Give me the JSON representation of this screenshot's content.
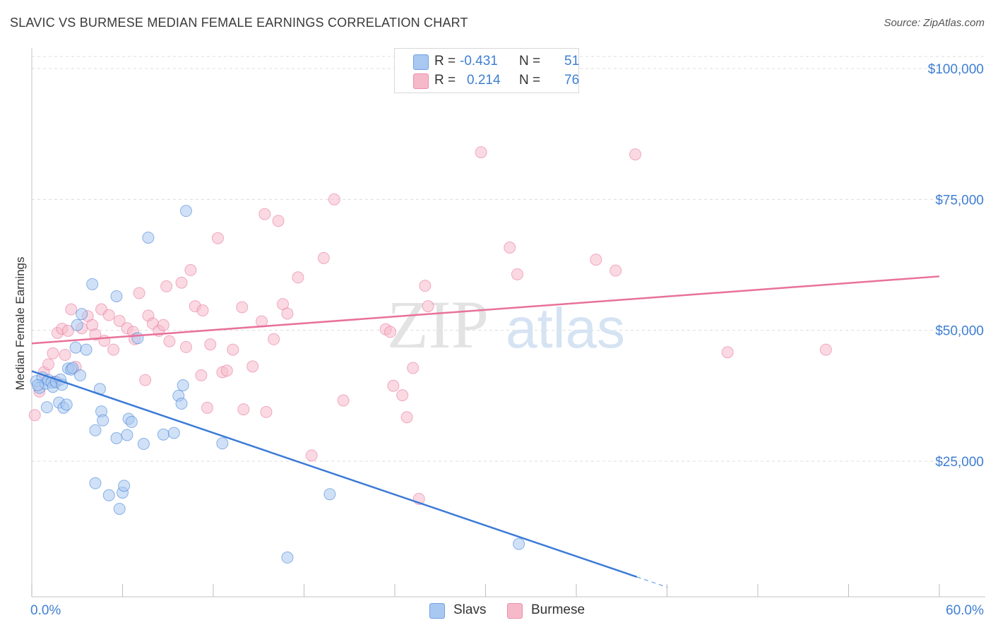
{
  "header": {
    "title": "SLAVIC VS BURMESE MEDIAN FEMALE EARNINGS CORRELATION CHART",
    "source": "Source: ZipAtlas.com"
  },
  "legend": {
    "rows": [
      {
        "r_label": "R =",
        "r_value": "-0.431",
        "n_label": "N =",
        "n_value": "51",
        "color": "#a9c8f1"
      },
      {
        "r_label": "R =",
        "r_value": "0.214",
        "n_label": "N =",
        "n_value": "76",
        "color": "#f6b9ca"
      }
    ]
  },
  "bottom_legend": [
    {
      "label": "Slavs",
      "color": "#a9c8f1"
    },
    {
      "label": "Burmese",
      "color": "#f6b9ca"
    }
  ],
  "watermark": {
    "left": "ZIP",
    "right": "atlas"
  },
  "chart_data": {
    "type": "scatter",
    "title": "SLAVIC VS BURMESE MEDIAN FEMALE EARNINGS CORRELATION CHART",
    "xlabel": "",
    "ylabel": "Median Female Earnings",
    "xlim": [
      0,
      60
    ],
    "ylim": [
      0,
      105000
    ],
    "x_tick_labels": [
      {
        "value": 0,
        "label": "0.0%"
      },
      {
        "value": 60,
        "label": "60.0%"
      }
    ],
    "y_ticks": [
      {
        "value": 25000,
        "label": "$25,000"
      },
      {
        "value": 50000,
        "label": "$50,000"
      },
      {
        "value": 75000,
        "label": "$75,000"
      },
      {
        "value": 100000,
        "label": "$100,000"
      }
    ],
    "grid": true,
    "series": [
      {
        "name": "Slavs",
        "color": "#3b7bd6",
        "fill": "#a9c8f1",
        "trend": {
          "x_start": 0,
          "y_start": 42200,
          "x_end": 40,
          "y_end": 2900,
          "dash_to_x": 42
        },
        "points": [
          [
            0.3,
            40300
          ],
          [
            0.5,
            39000
          ],
          [
            0.7,
            41000
          ],
          [
            0.9,
            39800
          ],
          [
            1.1,
            40500
          ],
          [
            1.3,
            40000
          ],
          [
            1.4,
            39200
          ],
          [
            1.6,
            40100
          ],
          [
            1.8,
            36200
          ],
          [
            1.9,
            40600
          ],
          [
            2.1,
            35200
          ],
          [
            2.3,
            35800
          ],
          [
            2.4,
            42700
          ],
          [
            2.6,
            42500
          ],
          [
            2.7,
            42800
          ],
          [
            2.9,
            46700
          ],
          [
            3.0,
            51000
          ],
          [
            3.2,
            41400
          ],
          [
            3.3,
            53100
          ],
          [
            3.6,
            46300
          ],
          [
            4.0,
            58800
          ],
          [
            4.2,
            30900
          ],
          [
            4.5,
            38800
          ],
          [
            4.6,
            34500
          ],
          [
            4.7,
            32800
          ],
          [
            5.1,
            18500
          ],
          [
            4.2,
            20800
          ],
          [
            5.6,
            29400
          ],
          [
            5.6,
            56500
          ],
          [
            5.8,
            15900
          ],
          [
            6.0,
            19000
          ],
          [
            6.1,
            20300
          ],
          [
            6.3,
            30000
          ],
          [
            6.4,
            33100
          ],
          [
            6.6,
            32500
          ],
          [
            7.0,
            48500
          ],
          [
            7.4,
            28300
          ],
          [
            7.7,
            67700
          ],
          [
            8.7,
            30100
          ],
          [
            9.4,
            30400
          ],
          [
            9.7,
            37500
          ],
          [
            9.9,
            36000
          ],
          [
            10.0,
            39500
          ],
          [
            10.2,
            72800
          ],
          [
            12.6,
            28400
          ],
          [
            16.9,
            6600
          ],
          [
            19.7,
            18700
          ],
          [
            32.2,
            9200
          ],
          [
            1.0,
            35300
          ],
          [
            2.0,
            39600
          ],
          [
            0.4,
            39500
          ]
        ]
      },
      {
        "name": "Burmese",
        "color": "#e8719a",
        "fill": "#f6b9ca",
        "trend": {
          "x_start": 0,
          "y_start": 47500,
          "x_end": 60,
          "y_end": 60300
        },
        "points": [
          [
            0.2,
            33800
          ],
          [
            0.5,
            38300
          ],
          [
            0.8,
            42000
          ],
          [
            1.1,
            43500
          ],
          [
            1.4,
            45600
          ],
          [
            1.7,
            49500
          ],
          [
            2.0,
            50300
          ],
          [
            2.4,
            49900
          ],
          [
            2.6,
            54000
          ],
          [
            2.9,
            43000
          ],
          [
            3.3,
            50400
          ],
          [
            3.7,
            52700
          ],
          [
            4.0,
            51000
          ],
          [
            4.2,
            49200
          ],
          [
            4.6,
            54000
          ],
          [
            4.8,
            48000
          ],
          [
            5.1,
            52900
          ],
          [
            5.4,
            46300
          ],
          [
            5.8,
            51800
          ],
          [
            6.3,
            50400
          ],
          [
            6.7,
            49700
          ],
          [
            6.8,
            48300
          ],
          [
            7.1,
            57100
          ],
          [
            7.5,
            40500
          ],
          [
            7.7,
            52800
          ],
          [
            8.0,
            51300
          ],
          [
            8.4,
            49900
          ],
          [
            8.7,
            51000
          ],
          [
            8.9,
            58400
          ],
          [
            9.1,
            47900
          ],
          [
            9.9,
            59100
          ],
          [
            10.2,
            46800
          ],
          [
            10.5,
            61500
          ],
          [
            10.8,
            54600
          ],
          [
            11.2,
            41400
          ],
          [
            11.3,
            53800
          ],
          [
            11.6,
            35200
          ],
          [
            11.8,
            47300
          ],
          [
            12.3,
            67600
          ],
          [
            12.6,
            42000
          ],
          [
            12.9,
            42300
          ],
          [
            13.3,
            46300
          ],
          [
            13.9,
            54400
          ],
          [
            14.0,
            34900
          ],
          [
            14.6,
            43100
          ],
          [
            15.2,
            51700
          ],
          [
            15.4,
            72200
          ],
          [
            15.5,
            34400
          ],
          [
            16.0,
            48300
          ],
          [
            16.3,
            70900
          ],
          [
            16.6,
            55000
          ],
          [
            16.9,
            53200
          ],
          [
            17.6,
            60100
          ],
          [
            19.3,
            63800
          ],
          [
            20.0,
            75000
          ],
          [
            20.6,
            36600
          ],
          [
            23.4,
            50200
          ],
          [
            23.7,
            49700
          ],
          [
            23.9,
            39400
          ],
          [
            24.5,
            37600
          ],
          [
            24.8,
            33400
          ],
          [
            25.2,
            42800
          ],
          [
            25.6,
            17800
          ],
          [
            26.0,
            58500
          ],
          [
            26.2,
            54600
          ],
          [
            29.7,
            84000
          ],
          [
            31.6,
            65800
          ],
          [
            32.1,
            60700
          ],
          [
            37.3,
            63500
          ],
          [
            38.6,
            61400
          ],
          [
            39.9,
            83600
          ],
          [
            46.0,
            45800
          ],
          [
            52.5,
            46300
          ],
          [
            18.5,
            26100
          ],
          [
            2.2,
            45300
          ],
          [
            1.5,
            40200
          ]
        ]
      }
    ]
  }
}
